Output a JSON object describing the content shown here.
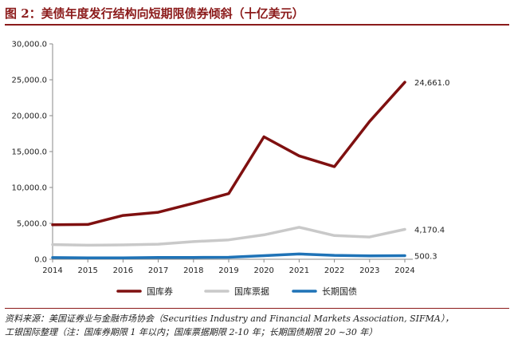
{
  "title": "图 2：美债年度发行结构向短期限债券倾斜（十亿美元）",
  "chart_data": {
    "type": "line",
    "x": [
      "2014",
      "2015",
      "2016",
      "2017",
      "2018",
      "2019",
      "2020",
      "2021",
      "2022",
      "2023",
      "2024"
    ],
    "ylim": [
      0,
      30000
    ],
    "yticks": [
      "0.0",
      "5,000.0",
      "10,000.0",
      "15,000.0",
      "20,000.0",
      "25,000.0",
      "30,000.0"
    ],
    "grid": false,
    "legend_position": "bottom",
    "series": [
      {
        "name": "国库券",
        "color": "#7f1010",
        "values": [
          4800,
          4850,
          6100,
          6550,
          7800,
          9150,
          17050,
          14400,
          12900,
          19200,
          24661
        ],
        "end_label": "24,661.0"
      },
      {
        "name": "国库票据",
        "color": "#c9c9c9",
        "values": [
          2050,
          1950,
          2000,
          2100,
          2450,
          2700,
          3400,
          4450,
          3300,
          3100,
          4170.4
        ],
        "end_label": "4,170.4"
      },
      {
        "name": "长期国债",
        "color": "#1f73b7",
        "values": [
          230,
          200,
          200,
          240,
          260,
          280,
          500,
          730,
          550,
          480,
          500.3
        ],
        "end_label": "500.3"
      }
    ]
  },
  "source": {
    "line1": "资料来源：美国证券业与金融市场协会（Securities Industry and Financial Markets Association, SIFMA），",
    "line2": "工银国际整理（注：国库券期限 1 年以内；国库票据期限 2-10 年；长期国债期限 20 ~30 年）"
  }
}
